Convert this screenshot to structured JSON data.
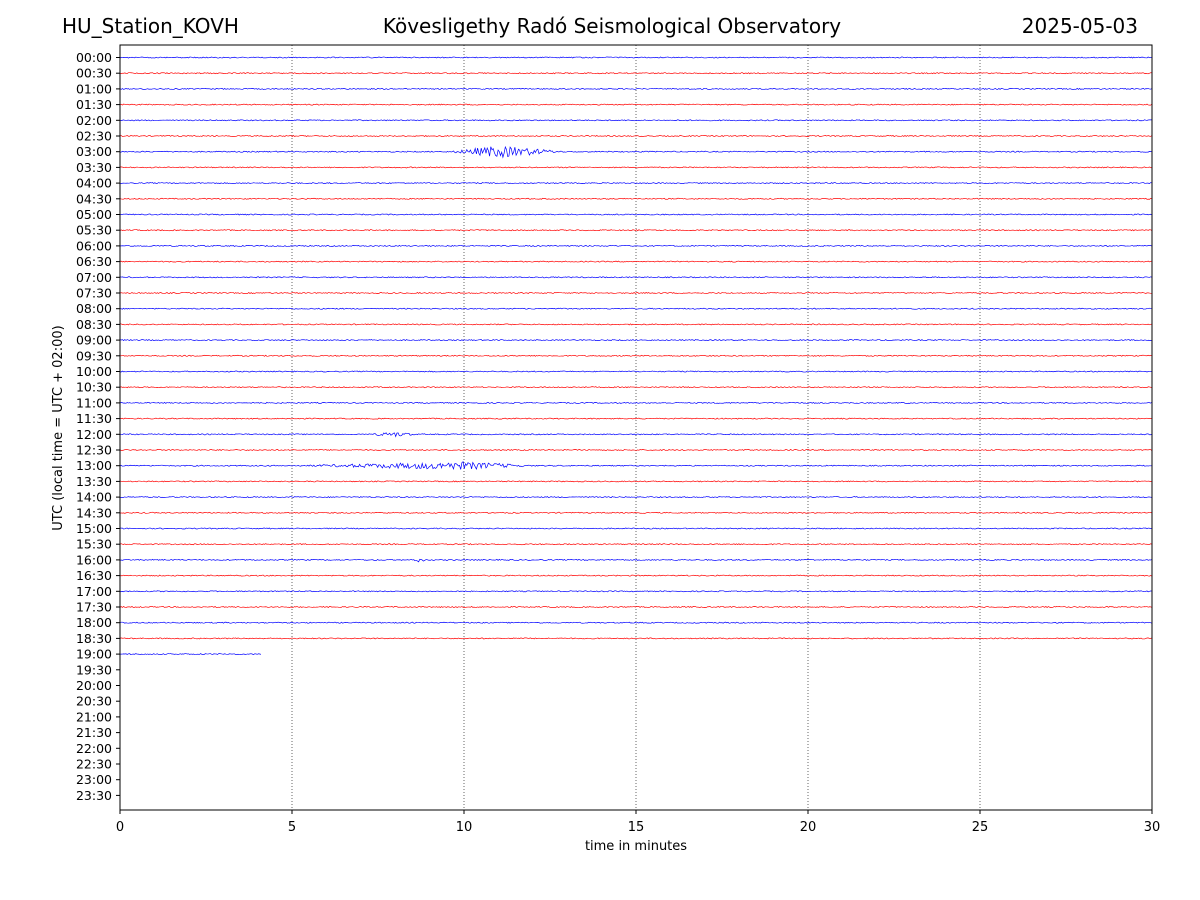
{
  "header": {
    "station": "HU_Station_KOVH",
    "observatory": "Kövesligethy Radó Seismological Observatory",
    "date": "2025-05-03"
  },
  "chart_data": {
    "type": "line",
    "title": "Kövesligethy Radó Seismological Observatory",
    "xlabel": "time in minutes",
    "ylabel": "UTC (local time = UTC + 02:00)",
    "xlim": [
      0,
      30
    ],
    "x_ticks": [
      "0",
      "5",
      "10",
      "15",
      "20",
      "25",
      "30"
    ],
    "x_tick_values": [
      0,
      5,
      10,
      15,
      20,
      25,
      30
    ],
    "vertical_gridlines": [
      5,
      10,
      15,
      20,
      25
    ],
    "row_labels": [
      "00:00",
      "00:30",
      "01:00",
      "01:30",
      "02:00",
      "02:30",
      "03:00",
      "03:30",
      "04:00",
      "04:30",
      "05:00",
      "05:30",
      "06:00",
      "06:30",
      "07:00",
      "07:30",
      "08:00",
      "08:30",
      "09:00",
      "09:30",
      "10:00",
      "10:30",
      "11:00",
      "11:30",
      "12:00",
      "12:30",
      "13:00",
      "13:30",
      "14:00",
      "14:30",
      "15:00",
      "15:30",
      "16:00",
      "16:30",
      "17:00",
      "17:30",
      "18:00",
      "18:30",
      "19:00",
      "19:30",
      "20:00",
      "20:30",
      "21:00",
      "21:30",
      "22:00",
      "22:30",
      "23:00",
      "23:30"
    ],
    "trace_colors": [
      "#0000ff",
      "#ff0000"
    ],
    "recorded_rows": 39,
    "last_row_end_minute": 4.1,
    "events": [
      {
        "row": "03:00",
        "start_min": 9.6,
        "end_min": 12.9,
        "peak_min": 11.0,
        "amplitude": 5.5
      },
      {
        "row": "12:00",
        "start_min": 7.3,
        "end_min": 8.6,
        "peak_min": 8.0,
        "amplitude": 2.0
      },
      {
        "row": "13:00",
        "start_min": 5.2,
        "end_min": 12.0,
        "peak_min": 10.0,
        "amplitude": 3.5
      },
      {
        "row": "16:00",
        "start_min": 8.5,
        "end_min": 8.9,
        "peak_min": 8.7,
        "amplitude": 1.8
      }
    ]
  }
}
